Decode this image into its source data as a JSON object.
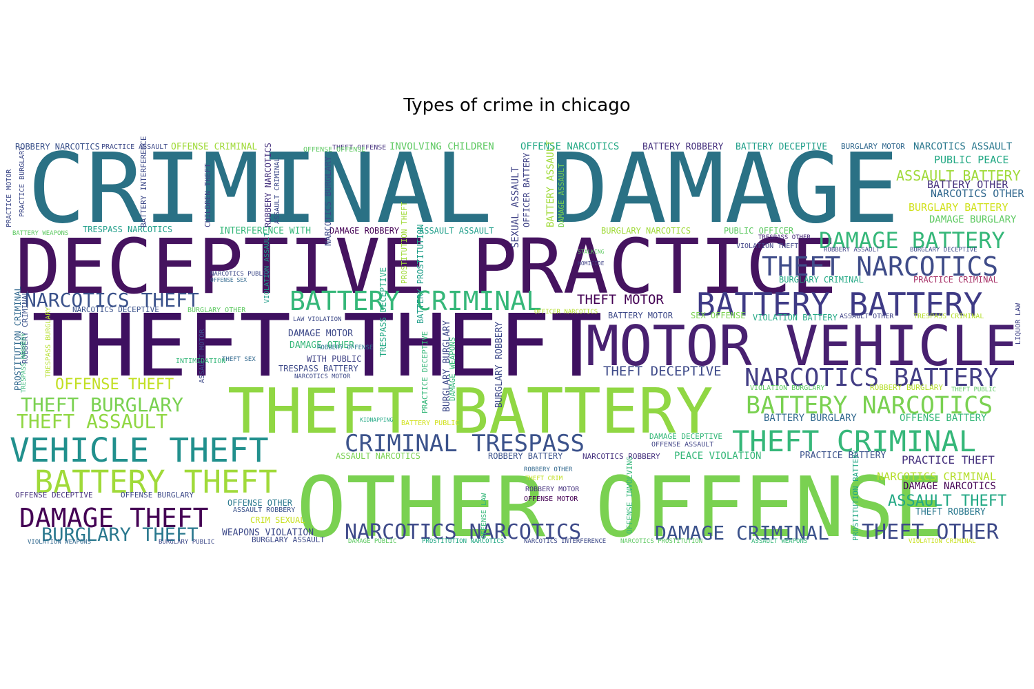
{
  "chart_data": {
    "type": "wordcloud",
    "title": "Types of crime in chicago",
    "background": "#ffffff",
    "palette": "viridis",
    "words": [
      {
        "text": "CRIMINAL DAMAGE",
        "color": "#2a7185"
      },
      {
        "text": "DECEPTIVE PRACTICE",
        "color": "#45135f"
      },
      {
        "text": "THEFT THEFT",
        "color": "#3e1060"
      },
      {
        "text": "MOTOR VEHICLE",
        "color": "#482070"
      },
      {
        "text": "THEFT BATTERY",
        "color": "#90d743"
      },
      {
        "text": "OTHER OFFENSE",
        "color": "#7ad151"
      },
      {
        "text": "BATTERY BATTERY",
        "color": "#3e3a85"
      },
      {
        "text": "THEFT NARCOTICS",
        "color": "#3f4c89"
      },
      {
        "text": "DAMAGE BATTERY",
        "color": "#35b779"
      },
      {
        "text": "NARCOTICS BATTERY",
        "color": "#433e85"
      },
      {
        "text": "BATTERY NARCOTICS",
        "color": "#7ad151"
      },
      {
        "text": "THEFT CRIMINAL",
        "color": "#35b779"
      },
      {
        "text": "CRIMINAL TRESPASS",
        "color": "#3b528b"
      },
      {
        "text": "VEHICLE THEFT",
        "color": "#21908d"
      },
      {
        "text": "BATTERY THEFT",
        "color": "#a0da39"
      },
      {
        "text": "DAMAGE THEFT",
        "color": "#440154"
      },
      {
        "text": "BATTERY CRIMINAL",
        "color": "#35b779"
      },
      {
        "text": "NARCOTICS THEFT",
        "color": "#3b528b"
      },
      {
        "text": "THEFT BURGLARY",
        "color": "#7ad151"
      },
      {
        "text": "THEFT ASSAULT",
        "color": "#90d743"
      },
      {
        "text": "BURGLARY THEFT",
        "color": "#2a788e"
      },
      {
        "text": "NARCOTICS NARCOTICS",
        "color": "#3e4a89"
      },
      {
        "text": "DAMAGE CRIMINAL",
        "color": "#3b528b"
      },
      {
        "text": "THEFT OTHER",
        "color": "#3e4a89"
      },
      {
        "text": "OFFENSE THEFT",
        "color": "#c2df23"
      },
      {
        "text": "THEFT MOTOR",
        "color": "#440154"
      },
      {
        "text": "THEFT DECEPTIVE",
        "color": "#3e4a89"
      },
      {
        "text": "ASSAULT BATTERY",
        "color": "#a0da39"
      },
      {
        "text": "PUBLIC PEACE",
        "color": "#22a884"
      },
      {
        "text": "BATTERY OTHER",
        "color": "#46327e"
      },
      {
        "text": "NARCOTICS OTHER",
        "color": "#31688e"
      },
      {
        "text": "BURGLARY BATTERY",
        "color": "#d0e11c"
      },
      {
        "text": "DAMAGE BURGLARY",
        "color": "#5ec962"
      },
      {
        "text": "NARCOTICS ASSAULT",
        "color": "#2a788e"
      },
      {
        "text": "BATTERY ROBBERY",
        "color": "#46327e"
      },
      {
        "text": "BATTERY DECEPTIVE",
        "color": "#1f9e89"
      },
      {
        "text": "BURGLARY MOTOR",
        "color": "#31688e"
      },
      {
        "text": "OFFENSE NARCOTICS",
        "color": "#22a884"
      },
      {
        "text": "INVOLVING CHILDREN",
        "color": "#5ec962"
      },
      {
        "text": "THEFT OFFENSE",
        "color": "#46327e"
      },
      {
        "text": "OFFENSE CRIMINAL",
        "color": "#a0da39"
      },
      {
        "text": "PRACTICE ASSAULT",
        "color": "#3e4a89"
      },
      {
        "text": "ROBBERY NARCOTICS",
        "color": "#3b528b"
      },
      {
        "text": "INTERFERENCE WITH",
        "color": "#35b779"
      },
      {
        "text": "DAMAGE ROBBERY",
        "color": "#440154"
      },
      {
        "text": "ASSAULT ASSAULT",
        "color": "#1f9e89"
      },
      {
        "text": "BURGLARY NARCOTICS",
        "color": "#a0da39"
      },
      {
        "text": "PUBLIC OFFICER",
        "color": "#5ec962"
      },
      {
        "text": "TRESPASS NARCOTICS",
        "color": "#1f9e89"
      },
      {
        "text": "BATTERY WEAPONS",
        "color": "#5ec962"
      },
      {
        "text": "VIOLATION THEFT",
        "color": "#414487"
      },
      {
        "text": "TRESPASS OTHER",
        "color": "#482878"
      },
      {
        "text": "BURGLARY CRIMINAL",
        "color": "#22a884"
      },
      {
        "text": "PRACTICE CRIMINAL",
        "color": "#a73268"
      },
      {
        "text": "ROBBERY ASSAULT",
        "color": "#414487"
      },
      {
        "text": "BURGLARY DECEPTIVE",
        "color": "#3e4a89"
      },
      {
        "text": "BATTERY MOTOR",
        "color": "#3e4a89"
      },
      {
        "text": "SEX OFFENSE",
        "color": "#7ad151"
      },
      {
        "text": "VIOLATION BATTERY",
        "color": "#22a884"
      },
      {
        "text": "ASSAULT OTHER",
        "color": "#414487"
      },
      {
        "text": "TRESPASS CRIMINAL",
        "color": "#b5de2b"
      },
      {
        "text": "LAW VIOLATION",
        "color": "#3e4a89"
      },
      {
        "text": "DAMAGE MOTOR",
        "color": "#3e4a89"
      },
      {
        "text": "DAMAGE OTHER",
        "color": "#35b779"
      },
      {
        "text": "WITH PUBLIC",
        "color": "#414487"
      },
      {
        "text": "TRESPASS BATTERY",
        "color": "#3e4a89"
      },
      {
        "text": "NARCOTICS MOTOR",
        "color": "#3e4a89"
      },
      {
        "text": "NARCOTICS DECEPTIVE",
        "color": "#3b528b"
      },
      {
        "text": "BURGLARY OTHER",
        "color": "#5ec962"
      },
      {
        "text": "OFFICER NARCOTICS",
        "color": "#b5de2b"
      },
      {
        "text": "VIOLATION BURGLARY",
        "color": "#5ec962"
      },
      {
        "text": "ROBBERY BURGLARY",
        "color": "#b5de2b"
      },
      {
        "text": "THEFT PUBLIC",
        "color": "#5ec962"
      },
      {
        "text": "BATTERY BURGLARY",
        "color": "#31688e"
      },
      {
        "text": "OFFENSE BATTERY",
        "color": "#35b779"
      },
      {
        "text": "DAMAGE DECEPTIVE",
        "color": "#35b779"
      },
      {
        "text": "OFFENSE ASSAULT",
        "color": "#414487"
      },
      {
        "text": "PEACE VIOLATION",
        "color": "#35b779"
      },
      {
        "text": "PRACTICE BATTERY",
        "color": "#3b528b"
      },
      {
        "text": "PRACTICE THEFT",
        "color": "#46327e"
      },
      {
        "text": "ASSAULT NARCOTICS",
        "color": "#7ad151"
      },
      {
        "text": "ROBBERY BATTERY",
        "color": "#3b528b"
      },
      {
        "text": "NARCOTICS ROBBERY",
        "color": "#46327e"
      },
      {
        "text": "NARCOTICS CRIMINAL",
        "color": "#b5de2b"
      },
      {
        "text": "DAMAGE NARCOTICS",
        "color": "#440154"
      },
      {
        "text": "ASSAULT THEFT",
        "color": "#22a884"
      },
      {
        "text": "THEFT ROBBERY",
        "color": "#2a788e"
      },
      {
        "text": "OFFENSE DECEPTIVE",
        "color": "#46327e"
      },
      {
        "text": "OFFENSE BURGLARY",
        "color": "#3e4a89"
      },
      {
        "text": "OFFENSE OTHER",
        "color": "#2a788e"
      },
      {
        "text": "ASSAULT ROBBERY",
        "color": "#3b528b"
      },
      {
        "text": "CRIM SEXUAL",
        "color": "#c8e020"
      },
      {
        "text": "WEAPONS VIOLATION",
        "color": "#3e4a89"
      },
      {
        "text": "BURGLARY ASSAULT",
        "color": "#3e4a89"
      },
      {
        "text": "ROBBERY OTHER",
        "color": "#31688e"
      },
      {
        "text": "THEFT CRIM",
        "color": "#c2df23"
      },
      {
        "text": "ROBBERY MOTOR",
        "color": "#46327e"
      },
      {
        "text": "OFFENSE MOTOR",
        "color": "#440154"
      },
      {
        "text": "DAMAGE PUBLIC",
        "color": "#5ec962"
      },
      {
        "text": "PROSTITUTION NARCOTICS",
        "color": "#22a884"
      },
      {
        "text": "NARCOTICS INTERFERENCE",
        "color": "#3e4a89"
      },
      {
        "text": "NARCOTICS PROSTITUTION",
        "color": "#5ec962"
      },
      {
        "text": "ASSAULT WEAPONS",
        "color": "#35b779"
      },
      {
        "text": "VIOLATION CRIMINAL",
        "color": "#c8e020"
      },
      {
        "text": "VIOLATION WEAPONS",
        "color": "#31688e"
      },
      {
        "text": "BURGLARY PUBLIC",
        "color": "#3e4a89"
      },
      {
        "text": "BATTERY PUBLIC",
        "color": "#d0e11c"
      },
      {
        "text": "THEFT SEX",
        "color": "#31688e"
      },
      {
        "text": "ROBBERY OFFENSE",
        "color": "#2a788e"
      },
      {
        "text": "PROSTITUTION CRIMINAL",
        "color": "#31688e"
      },
      {
        "text": "ROBBERY CRIMINAL",
        "color": "#3b528b"
      },
      {
        "text": "TRESPASS ROBBERY",
        "color": "#35b779"
      },
      {
        "text": "TRESPASS BURGLARY",
        "color": "#b5de2b"
      },
      {
        "text": "ASSAULT MOTOR",
        "color": "#3e4a89"
      },
      {
        "text": "OFFICER BATTERY",
        "color": "#414487"
      },
      {
        "text": "SEXUAL ASSAULT",
        "color": "#414487"
      },
      {
        "text": "BATTERY ASSAULT",
        "color": "#a0da39"
      },
      {
        "text": "DAMAGE ASSAULT",
        "color": "#7ad151"
      },
      {
        "text": "NARCOTICS BURGLARY",
        "color": "#3e4a89"
      },
      {
        "text": "ROBBERY NARCOTICS",
        "color": "#46327e"
      },
      {
        "text": "ASSAULT CRIMINAL",
        "color": "#3e4a89"
      },
      {
        "text": "CHILDREN THEFT",
        "color": "#414487"
      },
      {
        "text": "BATTERY INTERFERENCE",
        "color": "#3e4a89"
      },
      {
        "text": "VIOLATION ASSAULT",
        "color": "#1f9e89"
      },
      {
        "text": "PROSTITUTION THEFT",
        "color": "#a0da39"
      },
      {
        "text": "BATTERY PROSTITUTION",
        "color": "#1f9e89"
      },
      {
        "text": "PRACTICE MOTOR",
        "color": "#3e4a89"
      },
      {
        "text": "PRACTICE BURGLARY",
        "color": "#3e4a89"
      },
      {
        "text": "BURGLARY BURGLARY",
        "color": "#3e4a89"
      },
      {
        "text": "BURGLARY ROBBERY",
        "color": "#3e4a89"
      },
      {
        "text": "OFFENSE INVOLVING",
        "color": "#35b779"
      },
      {
        "text": "PRACTICE DECEPTIVE",
        "color": "#35b779"
      },
      {
        "text": "TRESPASS DECEPTIVE",
        "color": "#22a884"
      },
      {
        "text": "PROSTITUTION BATTERY",
        "color": "#22a884"
      },
      {
        "text": "LIQUOR LAW",
        "color": "#414487"
      },
      {
        "text": "DAMAGE WEAPONS",
        "color": "#35b779"
      },
      {
        "text": "OFFENSE LAW",
        "color": "#35b779"
      },
      {
        "text": "OFFENSE OFFENSE",
        "color": "#5ec962"
      },
      {
        "text": "NARCOTICS PUBLIC",
        "color": "#3e4a89"
      },
      {
        "text": "INTIMIDATION",
        "color": "#35b779"
      },
      {
        "text": "OFFENSE SEX",
        "color": "#31688e"
      },
      {
        "text": "STALKING",
        "color": "#5ec962"
      },
      {
        "text": "HOMICIDE",
        "color": "#414487"
      },
      {
        "text": "KIDNAPPING",
        "color": "#22a884"
      },
      {
        "text": "GAMBLING",
        "color": "#3e4a89"
      },
      {
        "text": "ARSON",
        "color": "#3e4a89"
      }
    ]
  }
}
